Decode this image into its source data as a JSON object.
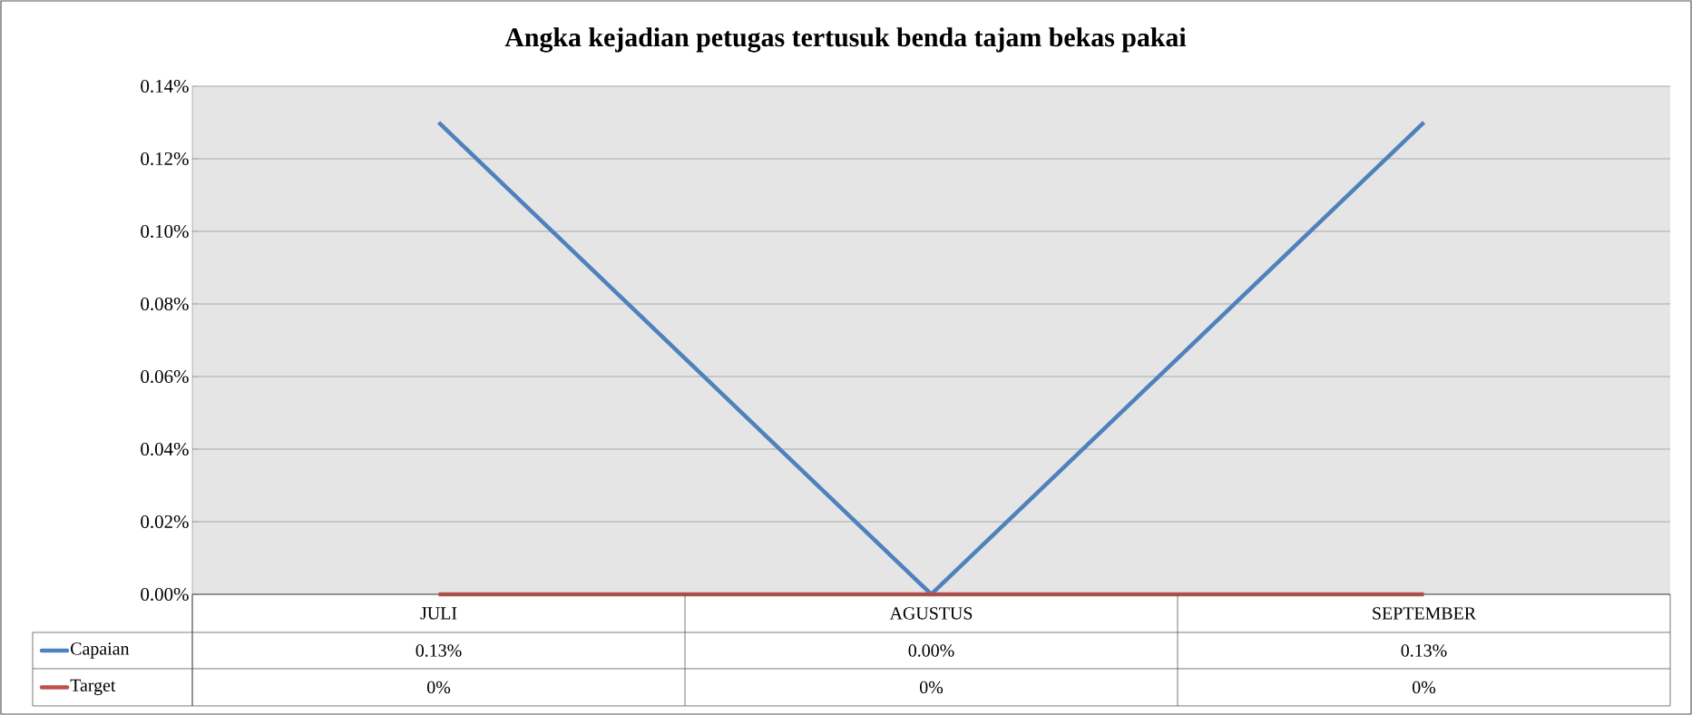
{
  "chart_data": {
    "type": "line",
    "title": "Angka kejadian petugas tertusuk benda tajam bekas pakai",
    "categories": [
      "JULI",
      "AGUSTUS",
      "SEPTEMBER"
    ],
    "series": [
      {
        "name": "Capaian",
        "color": "#4f81bd",
        "values": [
          0.13,
          0,
          0.13
        ],
        "value_labels": [
          "0.13%",
          "0.00%",
          "0.13%"
        ]
      },
      {
        "name": "Target",
        "color": "#c0504d",
        "values": [
          0,
          0,
          0
        ],
        "value_labels": [
          "0%",
          "0%",
          "0%"
        ]
      }
    ],
    "ylim": [
      0,
      0.14
    ],
    "yticks": [
      {
        "value": 0,
        "label": "0.00%"
      },
      {
        "value": 0.02,
        "label": "0.02%"
      },
      {
        "value": 0.04,
        "label": "0.04%"
      },
      {
        "value": 0.06,
        "label": "0.06%"
      },
      {
        "value": 0.08,
        "label": "0.08%"
      },
      {
        "value": 0.1,
        "label": "0.10%"
      },
      {
        "value": 0.12,
        "label": "0.12%"
      },
      {
        "value": 0.14,
        "label": "0.14%"
      }
    ],
    "grid": "y",
    "legend": "bottom"
  }
}
